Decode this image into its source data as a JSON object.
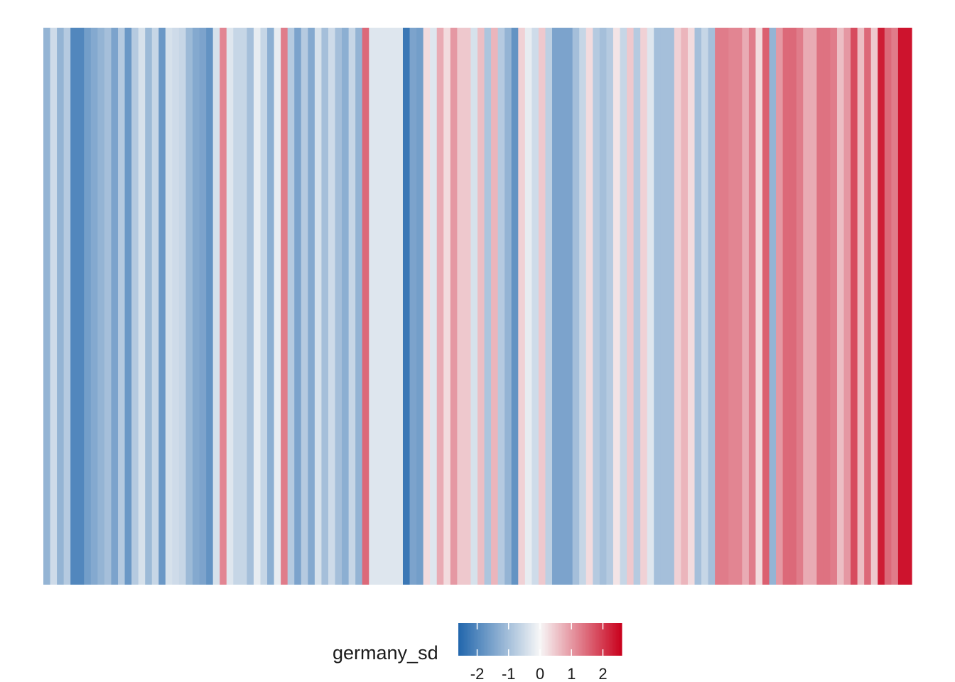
{
  "chart_data": {
    "type": "heatmap",
    "title": "",
    "xlabel": "",
    "ylabel": "",
    "grid": false,
    "legend": {
      "title": "germany_sd",
      "placement": "bottom",
      "ticks": [
        -2,
        -1,
        0,
        1,
        2
      ],
      "tick_labels": [
        "-2",
        "-1",
        "0",
        "1",
        "2"
      ],
      "range": [
        -2.6,
        2.6
      ],
      "colors": {
        "low": "#2166ac",
        "mid": "#f7f7f7",
        "high": "#c9001c"
      }
    },
    "values": [
      -1.2,
      -0.5,
      -1.2,
      -0.8,
      -2.0,
      -2.0,
      -1.6,
      -1.4,
      -1.2,
      -1.0,
      -1.5,
      -0.8,
      -1.7,
      -0.8,
      -0.4,
      -1.1,
      -0.6,
      -1.7,
      -0.4,
      -0.5,
      -0.6,
      -1.1,
      -1.4,
      -1.5,
      -1.8,
      -0.4,
      1.2,
      -0.3,
      -0.6,
      -0.6,
      -1.0,
      -0.2,
      -0.6,
      -1.3,
      -0.2,
      1.3,
      -0.8,
      -1.5,
      -0.8,
      -1.4,
      -0.4,
      -1.0,
      -0.5,
      -1.0,
      -1.3,
      -0.6,
      -1.2,
      1.5,
      -0.3,
      -0.3,
      -0.3,
      -0.3,
      -0.3,
      -2.3,
      -1.5,
      -1.6,
      0.3,
      -0.3,
      0.8,
      0.3,
      1.0,
      0.5,
      0.5,
      -0.4,
      0.6,
      -0.9,
      0.7,
      -0.8,
      -1.2,
      -1.8,
      0.4,
      -0.2,
      -0.5,
      0.5,
      -0.7,
      -1.5,
      -1.5,
      -1.5,
      -1.0,
      -0.6,
      0.3,
      -0.8,
      -1.0,
      -0.8,
      0.2,
      -0.6,
      0.5,
      -0.8,
      0.4,
      -0.3,
      -1.0,
      -1.0,
      -1.0,
      0.4,
      0.7,
      0.3,
      -1.0,
      -0.6,
      -1.0,
      1.3,
      1.3,
      1.2,
      1.2,
      0.8,
      1.3,
      0.3,
      1.6,
      -1.2,
      1.0,
      1.5,
      1.5,
      1.3,
      0.8,
      0.8,
      1.4,
      1.4,
      1.3,
      0.6,
      1.0,
      1.8,
      0.6,
      1.5,
      0.5,
      2.3,
      1.5,
      1.3,
      2.4,
      2.4
    ]
  }
}
